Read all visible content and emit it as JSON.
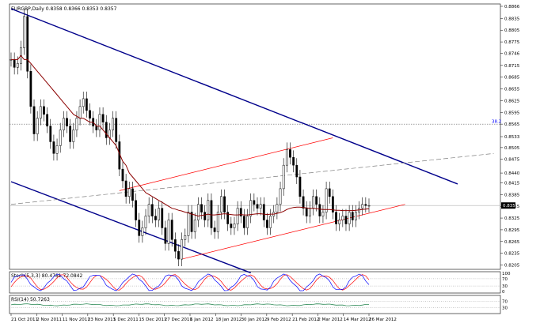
{
  "chart_data": {
    "type": "candlestick",
    "title": "EURGBP,Daily  0.8358 0.8366 0.8353 0.8357",
    "timeframe": "Daily",
    "price_axis": {
      "ylim": [
        0.82,
        0.8866
      ],
      "ticks": [
        "0.8866",
        "0.8835",
        "0.8805",
        "0.8775",
        "0.8746",
        "0.8715",
        "0.8685",
        "0.8655",
        "0.8625",
        "0.8595",
        "0.8565",
        "0.8533",
        "0.8505",
        "0.8475",
        "0.8440",
        "0.8415",
        "0.8385",
        "0.8355",
        "0.8325",
        "0.8295",
        "0.8265",
        "0.8235",
        "0.8205"
      ],
      "current_price": "0.8357",
      "fib_label": "38.2",
      "fib_level": 0.8565
    },
    "date_labels": [
      "21 Oct 2011",
      "2 Nov 2011",
      "11 Nov 2011",
      "23 Nov 2011",
      "5 Dec 2011",
      "15 Dec 2011",
      "27 Dec 2011",
      "6 Jan 2012",
      "18 Jan 2012",
      "30 Jan 2012",
      "9 Feb 2012",
      "21 Feb 2012",
      "2 Mar 2012",
      "14 Mar 2012",
      "26 Mar 2012"
    ],
    "bars": 110,
    "close": [
      0.873,
      0.871,
      0.872,
      0.876,
      0.884,
      0.87,
      0.861,
      0.854,
      0.858,
      0.861,
      0.859,
      0.856,
      0.852,
      0.849,
      0.851,
      0.855,
      0.858,
      0.856,
      0.852,
      0.855,
      0.858,
      0.861,
      0.863,
      0.86,
      0.858,
      0.856,
      0.855,
      0.859,
      0.857,
      0.853,
      0.855,
      0.858,
      0.852,
      0.845,
      0.842,
      0.838,
      0.84,
      0.837,
      0.832,
      0.828,
      0.83,
      0.833,
      0.836,
      0.833,
      0.832,
      0.835,
      0.83,
      0.826,
      0.832,
      0.827,
      0.824,
      0.822,
      0.827,
      0.828,
      0.834,
      0.829,
      0.832,
      0.836,
      0.834,
      0.832,
      0.837,
      0.83,
      0.829,
      0.834,
      0.838,
      0.834,
      0.831,
      0.83,
      0.831,
      0.835,
      0.833,
      0.83,
      0.833,
      0.837,
      0.836,
      0.835,
      0.836,
      0.832,
      0.83,
      0.833,
      0.834,
      0.836,
      0.84,
      0.846,
      0.85,
      0.848,
      0.846,
      0.843,
      0.838,
      0.835,
      0.833,
      0.835,
      0.838,
      0.836,
      0.833,
      0.834,
      0.84,
      0.838,
      0.834,
      0.831,
      0.832,
      0.833,
      0.831,
      0.834,
      0.832,
      0.834,
      0.835,
      0.836,
      0.8357,
      0.8357
    ],
    "moving_average": {
      "name": "",
      "start": 0.873,
      "values": [
        0.873,
        0.873,
        0.873,
        0.874,
        0.873,
        0.873,
        0.872,
        0.871,
        0.87,
        0.869,
        0.868,
        0.867,
        0.866,
        0.865,
        0.864,
        0.863,
        0.862,
        0.861,
        0.86,
        0.859,
        0.8585,
        0.858,
        0.858,
        0.8575,
        0.857,
        0.857,
        0.856,
        0.856,
        0.855,
        0.854,
        0.853,
        0.852,
        0.851,
        0.849,
        0.847,
        0.846,
        0.844,
        0.843,
        0.842,
        0.841,
        0.84,
        0.839,
        0.8385,
        0.838,
        0.8375,
        0.837,
        0.8365,
        0.836,
        0.8355,
        0.835,
        0.8348,
        0.8345,
        0.8343,
        0.834,
        0.8338,
        0.8335,
        0.8333,
        0.833,
        0.8332,
        0.8333,
        0.8335,
        0.8333,
        0.8333,
        0.8334,
        0.8335,
        0.8336,
        0.8335,
        0.8334,
        0.8333,
        0.8333,
        0.8334,
        0.8333,
        0.8333,
        0.8334,
        0.8335,
        0.8336,
        0.8336,
        0.8335,
        0.8334,
        0.8335,
        0.8335,
        0.8337,
        0.8339,
        0.8342,
        0.8347,
        0.835,
        0.8352,
        0.8353,
        0.8353,
        0.8352,
        0.8351,
        0.835,
        0.835,
        0.8349,
        0.8348,
        0.8347,
        0.8347,
        0.8347,
        0.8346,
        0.8345,
        0.8345,
        0.8344,
        0.8344,
        0.8344,
        0.8344,
        0.8345,
        0.8346,
        0.8347,
        0.8348,
        0.8349
      ]
    },
    "stochastic": {
      "label": "Stoch(5,3,3) 80.4781 72.0842",
      "levels": [
        "100",
        "70",
        "30",
        "0"
      ]
    },
    "rsi": {
      "label": "RSI(14) 50.7263",
      "levels": [
        "70",
        "30"
      ]
    },
    "colors": {
      "channel_blue": "#00008b",
      "channel_red": "#ff0000",
      "ma": "#8b0000",
      "stoch_main": "#0000ff",
      "stoch_signal": "#ff0000",
      "rsi": "#2e8b57",
      "grid": "#c0c0c0"
    }
  }
}
